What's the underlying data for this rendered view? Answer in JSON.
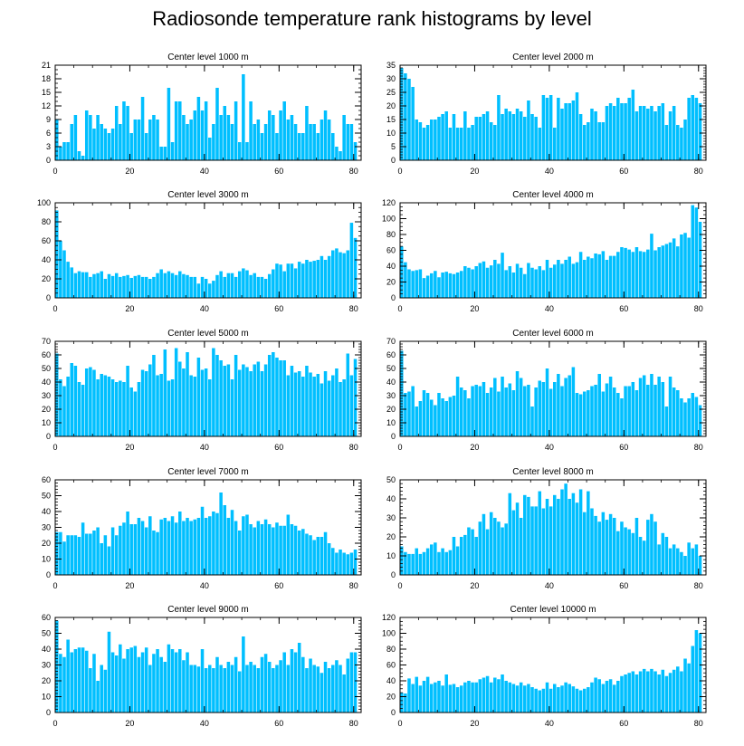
{
  "page": {
    "title": "Radiosonde temperature rank histograms by level"
  },
  "style": {
    "bar_color": "#00BFFF",
    "bar_edge": "#ffffff",
    "axis_color": "#000000"
  },
  "chart_data": [
    {
      "type": "bar",
      "title": "Center level 1000 m",
      "xlim": [
        0,
        82
      ],
      "ylim": [
        0,
        21
      ],
      "xticks": [
        0,
        20,
        40,
        60,
        80
      ],
      "yticks": [
        0,
        3,
        6,
        9,
        12,
        15,
        18,
        21
      ],
      "values": [
        9,
        3,
        4,
        4,
        8,
        10,
        2,
        1,
        11,
        10,
        7,
        10,
        8,
        7,
        6,
        7,
        12,
        8,
        13,
        12,
        6,
        9,
        9,
        14,
        6,
        9,
        10,
        9,
        3,
        3,
        16,
        4,
        13,
        13,
        10,
        8,
        9,
        11,
        14,
        11,
        13,
        5,
        8,
        16,
        10,
        12,
        10,
        8,
        13,
        4,
        19,
        4,
        13,
        8,
        9,
        6,
        8,
        11,
        10,
        6,
        11,
        13,
        9,
        10,
        8,
        6,
        6,
        12,
        8,
        8,
        6,
        9,
        11,
        9,
        6,
        3,
        2,
        10,
        8,
        8,
        4
      ]
    },
    {
      "type": "bar",
      "title": "Center level 2000 m",
      "xlim": [
        0,
        82
      ],
      "ylim": [
        0,
        35
      ],
      "xticks": [
        0,
        20,
        40,
        60,
        80
      ],
      "yticks": [
        0,
        5,
        10,
        15,
        20,
        25,
        30,
        35
      ],
      "values": [
        34,
        32,
        30,
        27,
        15,
        14,
        12,
        13,
        15,
        15,
        16,
        17,
        18,
        12,
        17,
        12,
        12,
        18,
        12,
        13,
        16,
        16,
        17,
        18,
        14,
        13,
        24,
        17,
        19,
        18,
        17,
        19,
        18,
        16,
        22,
        17,
        16,
        12,
        24,
        23,
        24,
        12,
        23,
        19,
        21,
        21,
        22,
        25,
        17,
        13,
        14,
        19,
        18,
        14,
        14,
        20,
        21,
        20,
        23,
        21,
        21,
        23,
        26,
        18,
        20,
        20,
        19,
        20,
        18,
        20,
        21,
        13,
        18,
        20,
        13,
        12,
        15,
        23,
        24,
        23,
        21
      ]
    },
    {
      "type": "bar",
      "title": "Center level 3000 m",
      "xlim": [
        0,
        82
      ],
      "ylim": [
        0,
        100
      ],
      "xticks": [
        0,
        20,
        40,
        60,
        80
      ],
      "yticks": [
        0,
        20,
        40,
        60,
        80,
        100
      ],
      "values": [
        92,
        60,
        50,
        38,
        32,
        26,
        28,
        27,
        27,
        22,
        25,
        26,
        28,
        20,
        25,
        23,
        26,
        22,
        23,
        24,
        21,
        23,
        24,
        22,
        22,
        20,
        22,
        26,
        30,
        26,
        28,
        26,
        24,
        28,
        25,
        24,
        22,
        22,
        15,
        22,
        20,
        15,
        18,
        24,
        28,
        22,
        26,
        26,
        22,
        28,
        31,
        29,
        24,
        26,
        22,
        22,
        20,
        25,
        30,
        36,
        35,
        28,
        36,
        36,
        31,
        38,
        36,
        40,
        38,
        39,
        40,
        44,
        40,
        44,
        50,
        52,
        48,
        47,
        50,
        79,
        63
      ]
    },
    {
      "type": "bar",
      "title": "Center level 4000 m",
      "xlim": [
        0,
        82
      ],
      "ylim": [
        0,
        120
      ],
      "xticks": [
        0,
        20,
        40,
        60,
        80
      ],
      "yticks": [
        0,
        20,
        40,
        60,
        80,
        100,
        120
      ],
      "values": [
        65,
        45,
        36,
        34,
        35,
        36,
        25,
        28,
        31,
        34,
        26,
        32,
        33,
        31,
        30,
        32,
        34,
        40,
        38,
        36,
        40,
        44,
        46,
        38,
        41,
        48,
        43,
        57,
        35,
        40,
        32,
        43,
        38,
        30,
        44,
        38,
        36,
        40,
        35,
        48,
        38,
        42,
        48,
        43,
        48,
        52,
        43,
        45,
        58,
        48,
        52,
        50,
        56,
        55,
        59,
        48,
        53,
        53,
        58,
        64,
        63,
        61,
        58,
        64,
        59,
        58,
        61,
        81,
        60,
        64,
        66,
        68,
        70,
        75,
        65,
        80,
        82,
        76,
        117,
        114,
        96
      ]
    },
    {
      "type": "bar",
      "title": "Center level 5000 m",
      "xlim": [
        0,
        82
      ],
      "ylim": [
        0,
        70
      ],
      "xticks": [
        0,
        20,
        40,
        60,
        80
      ],
      "yticks": [
        0,
        10,
        20,
        30,
        40,
        50,
        60,
        70
      ],
      "values": [
        61,
        42,
        37,
        44,
        54,
        52,
        40,
        38,
        50,
        51,
        49,
        42,
        46,
        45,
        44,
        42,
        40,
        41,
        40,
        52,
        36,
        33,
        40,
        49,
        48,
        53,
        60,
        45,
        46,
        64,
        41,
        42,
        65,
        55,
        50,
        62,
        45,
        44,
        58,
        49,
        50,
        42,
        65,
        60,
        56,
        52,
        53,
        42,
        60,
        49,
        53,
        51,
        48,
        53,
        55,
        48,
        53,
        60,
        62,
        58,
        56,
        56,
        45,
        52,
        47,
        48,
        44,
        52,
        47,
        44,
        46,
        39,
        48,
        41,
        45,
        50,
        40,
        42,
        61,
        45,
        57
      ]
    },
    {
      "type": "bar",
      "title": "Center level 6000 m",
      "xlim": [
        0,
        82
      ],
      "ylim": [
        0,
        70
      ],
      "xticks": [
        0,
        20,
        40,
        60,
        80
      ],
      "yticks": [
        0,
        10,
        20,
        30,
        40,
        50,
        60,
        70
      ],
      "values": [
        63,
        32,
        33,
        37,
        22,
        26,
        34,
        32,
        27,
        23,
        32,
        28,
        26,
        29,
        30,
        44,
        36,
        34,
        28,
        37,
        38,
        37,
        40,
        32,
        36,
        43,
        33,
        44,
        36,
        39,
        34,
        48,
        43,
        37,
        38,
        22,
        36,
        41,
        40,
        50,
        35,
        40,
        46,
        37,
        43,
        45,
        51,
        32,
        31,
        33,
        34,
        37,
        38,
        46,
        33,
        39,
        44,
        36,
        32,
        28,
        37,
        37,
        40,
        34,
        43,
        45,
        38,
        46,
        38,
        44,
        40,
        22,
        44,
        36,
        34,
        28,
        25,
        28,
        32,
        29,
        23
      ]
    },
    {
      "type": "bar",
      "title": "Center level 7000 m",
      "xlim": [
        0,
        82
      ],
      "ylim": [
        0,
        60
      ],
      "xticks": [
        0,
        20,
        40,
        60,
        80
      ],
      "yticks": [
        0,
        10,
        20,
        30,
        40,
        50,
        60
      ],
      "values": [
        27,
        27,
        21,
        25,
        25,
        25,
        24,
        33,
        26,
        26,
        28,
        30,
        20,
        25,
        18,
        30,
        25,
        31,
        33,
        40,
        32,
        32,
        36,
        34,
        30,
        37,
        28,
        27,
        35,
        36,
        34,
        37,
        33,
        40,
        34,
        36,
        34,
        35,
        36,
        43,
        36,
        37,
        40,
        39,
        52,
        44,
        36,
        41,
        34,
        28,
        37,
        38,
        32,
        30,
        34,
        32,
        35,
        32,
        30,
        33,
        31,
        31,
        38,
        32,
        31,
        28,
        29,
        26,
        25,
        22,
        24,
        24,
        27,
        20,
        17,
        14,
        16,
        14,
        13,
        14,
        16
      ]
    },
    {
      "type": "bar",
      "title": "Center level 8000 m",
      "xlim": [
        0,
        82
      ],
      "ylim": [
        0,
        50
      ],
      "xticks": [
        0,
        20,
        40,
        60,
        80
      ],
      "yticks": [
        0,
        10,
        20,
        30,
        40,
        50
      ],
      "values": [
        15,
        12,
        11,
        11,
        14,
        11,
        12,
        14,
        16,
        17,
        12,
        14,
        12,
        13,
        20,
        15,
        20,
        21,
        25,
        24,
        20,
        28,
        32,
        24,
        33,
        30,
        28,
        25,
        27,
        43,
        34,
        38,
        30,
        42,
        41,
        36,
        36,
        44,
        35,
        40,
        36,
        42,
        40,
        45,
        48,
        40,
        43,
        38,
        45,
        33,
        44,
        35,
        31,
        28,
        33,
        29,
        32,
        30,
        23,
        28,
        25,
        24,
        22,
        30,
        20,
        18,
        29,
        32,
        28,
        16,
        22,
        20,
        14,
        16,
        14,
        12,
        10,
        17,
        14,
        16,
        10
      ]
    },
    {
      "type": "bar",
      "title": "Center level 9000 m",
      "xlim": [
        0,
        82
      ],
      "ylim": [
        0,
        60
      ],
      "xticks": [
        0,
        20,
        40,
        60,
        80
      ],
      "yticks": [
        0,
        10,
        20,
        30,
        40,
        50,
        60
      ],
      "values": [
        58,
        37,
        35,
        46,
        38,
        40,
        41,
        41,
        39,
        28,
        37,
        20,
        30,
        27,
        51,
        38,
        36,
        43,
        34,
        40,
        41,
        42,
        35,
        38,
        41,
        30,
        37,
        40,
        35,
        32,
        43,
        40,
        38,
        40,
        33,
        38,
        30,
        30,
        29,
        40,
        28,
        30,
        28,
        35,
        30,
        28,
        32,
        30,
        35,
        26,
        48,
        30,
        32,
        30,
        28,
        35,
        37,
        32,
        28,
        30,
        33,
        38,
        30,
        40,
        38,
        44,
        35,
        28,
        34,
        30,
        29,
        25,
        32,
        28,
        30,
        33,
        30,
        24,
        34,
        38,
        38
      ]
    },
    {
      "type": "bar",
      "title": "Center level 10000 m",
      "xlim": [
        0,
        82
      ],
      "ylim": [
        0,
        120
      ],
      "xticks": [
        0,
        20,
        40,
        60,
        80
      ],
      "yticks": [
        0,
        20,
        40,
        60,
        80,
        100,
        120
      ],
      "values": [
        25,
        24,
        43,
        36,
        45,
        34,
        40,
        45,
        36,
        38,
        40,
        34,
        48,
        35,
        36,
        32,
        34,
        38,
        40,
        38,
        38,
        42,
        44,
        46,
        38,
        44,
        42,
        48,
        40,
        38,
        36,
        34,
        38,
        34,
        36,
        32,
        30,
        28,
        30,
        38,
        30,
        36,
        32,
        34,
        38,
        36,
        33,
        30,
        28,
        30,
        32,
        38,
        44,
        42,
        36,
        40,
        42,
        35,
        40,
        46,
        48,
        50,
        52,
        48,
        52,
        55,
        52,
        55,
        52,
        48,
        54,
        46,
        50,
        54,
        58,
        52,
        68,
        62,
        84,
        104,
        100
      ]
    }
  ]
}
